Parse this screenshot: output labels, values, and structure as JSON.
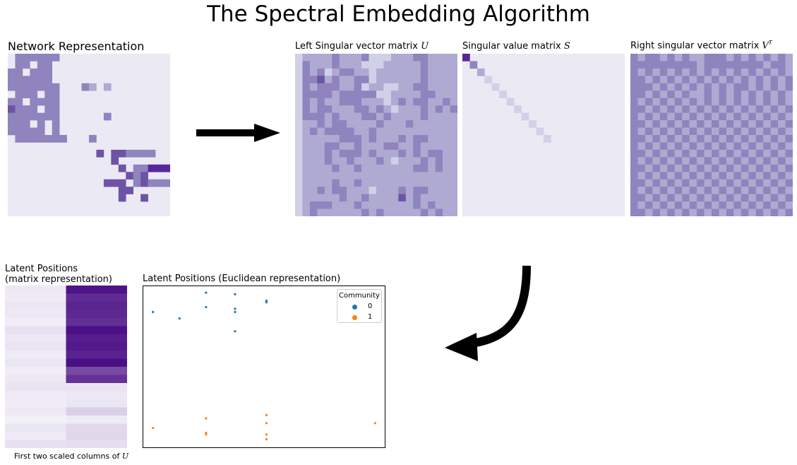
{
  "title": "The Spectral Embedding Algorithm",
  "panels": {
    "network": {
      "title": "Network Representation"
    },
    "u": {
      "title_text": "Left Singular vector matrix ",
      "symbol": "U"
    },
    "s": {
      "title_text": "Singular value matrix ",
      "symbol": "S"
    },
    "vt": {
      "title_text": "Right singular vector matrix ",
      "symbol": "V",
      "superscript": "T"
    },
    "latent_matrix": {
      "title_line1": "Latent Positions",
      "title_line2": "(matrix representation)",
      "caption_text": "First two scaled columns of ",
      "caption_symbol": "U"
    },
    "latent_scatter": {
      "title": "Latent Positions (Euclidean representation)"
    }
  },
  "colors": {
    "palette": [
      "#ebe9f3",
      "#d0d0e7",
      "#aeaad2",
      "#8f84be",
      "#6d53a5",
      "#56279a",
      "#460b8b"
    ],
    "community_0": "#1f77b4",
    "community_1": "#ff7f0e",
    "arrow": "#000000"
  },
  "icons": {
    "right_arrow": "right-arrow-icon",
    "curved_arrow": "curved-arrow-icon"
  },
  "chart_data": {
    "type": "scatter",
    "title": "Latent Positions (Euclidean representation)",
    "xlabel": "",
    "ylabel": "",
    "legend": {
      "title": "Community",
      "placement": "top-right",
      "entries": [
        "0",
        "1"
      ]
    },
    "xlim": [
      0,
      1
    ],
    "ylim": [
      0,
      1
    ],
    "series": [
      {
        "name": "0",
        "x": [
          0.04,
          0.15,
          0.26,
          0.26,
          0.38,
          0.38,
          0.38,
          0.38,
          0.51,
          0.51
        ],
        "y": [
          0.84,
          0.8,
          0.96,
          0.87,
          0.95,
          0.86,
          0.84,
          0.72,
          0.91,
          0.9
        ]
      },
      {
        "name": "1",
        "x": [
          0.04,
          0.26,
          0.26,
          0.26,
          0.51,
          0.51,
          0.51,
          0.51,
          0.96
        ],
        "y": [
          0.12,
          0.18,
          0.09,
          0.08,
          0.2,
          0.15,
          0.08,
          0.05,
          0.15
        ]
      }
    ]
  },
  "matrices": {
    "network": [
      "0333333000000000000000",
      "0330330000000000000000",
      "3303330000000000000000",
      "3333330000000000000000",
      "3333333000320200000000",
      "0333033000000000000000",
      "3303333000000000000000",
      "4333033000000000000000",
      "3333333000000300000000",
      "3330303000000000000000",
      "3333303000000000000000",
      "0333333300030000000000",
      "0000000000000000000000",
      "0000000000004044333300",
      "0000000000000040000000",
      "0000000000000004033555",
      "0000000000000000434000",
      "0000000000000444034333",
      "0000000000000004400000",
      "0000000000000004004000",
      "0000000000000000000000",
      "0000000000000000000000"
    ],
    "u": [
      "1222232223111222332222",
      "1322232221112222232222",
      "1323123322122222232222",
      "1334232233122222232222",
      "1323332231221122332222",
      "1333323333311222233222",
      "1323223332221232332232",
      "1323322233232122232323",
      "1333232223323222232222",
      "1223233222232223222222",
      "1232333322322222222222",
      "1222223332322232332222",
      "1222332232223322322222",
      "1222323332322232323322",
      "1222322322232122232322",
      "1222232232222222332322",
      "1222222222222222222222",
      "1222232232222222222222",
      "1223233222122232332222",
      "1222223223222242322222",
      "1233322232222222323222",
      "1232222223232222232322"
    ],
    "s": [
      "5000000000000000000000",
      "0300000000000000000000",
      "0020000000000000000000",
      "0001000000000000000000",
      "0000100000000000000000",
      "0000010000000000000000",
      "0000001000000000000000",
      "0000000100000000000000",
      "0000000010000000000000",
      "0000000001000000000000",
      "0000000000100000000000",
      "0000000000010000000000",
      "0000000000000000000000",
      "0000000000000000000000",
      "0000000000000000000000",
      "0000000000000000000000",
      "0000000000000000000000",
      "0000000000000000000000",
      "0000000000000000000000",
      "0000000000000000000000",
      "0000000000000000000000",
      "0000000000000000000000"
    ],
    "vt": [
      "3233232322333232323232",
      "3333333332333333332332",
      "3232323232323232323232",
      "3323232323232323232323",
      "3332323232323233232323",
      "3323232322323232323232",
      "3232323232323232323232",
      "3323232323232323232323",
      "3232323232323232323232",
      "3323232323232323232323",
      "3232323232323232323232",
      "3323232323232323232323",
      "3232323232323232323232",
      "3323232323232323232323",
      "3232323232323232323232",
      "3323232323232323232323",
      "3232323232323232323232",
      "3323232323232323232323",
      "3232323232323232323232",
      "3323232323232323232323",
      "3232323232323232323232",
      "3323232323232323232323"
    ],
    "latent": [
      [
        0.06,
        0.92
      ],
      [
        0.05,
        0.82
      ],
      [
        0.07,
        0.85
      ],
      [
        0.06,
        0.84
      ],
      [
        0.04,
        0.81
      ],
      [
        0.09,
        0.93
      ],
      [
        0.06,
        0.88
      ],
      [
        0.08,
        0.9
      ],
      [
        0.05,
        0.86
      ],
      [
        0.07,
        0.94
      ],
      [
        0.04,
        0.7
      ],
      [
        0.06,
        0.8
      ],
      [
        0.08,
        0.08
      ],
      [
        0.05,
        0.06
      ],
      [
        0.04,
        0.07
      ],
      [
        0.06,
        0.16
      ],
      [
        0.03,
        0.05
      ],
      [
        0.07,
        0.12
      ],
      [
        0.05,
        0.13
      ],
      [
        0.09,
        0.1
      ]
    ]
  }
}
